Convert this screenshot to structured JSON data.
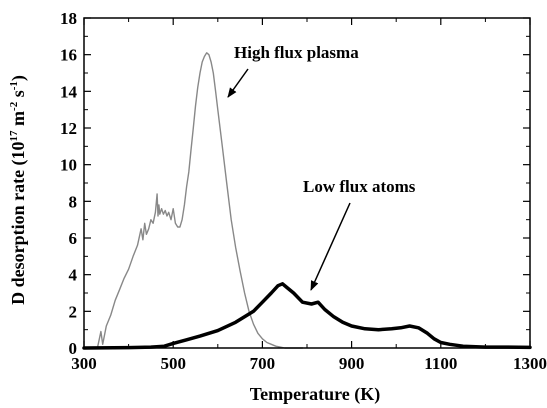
{
  "chart_data": {
    "type": "line",
    "title": "",
    "xlabel": "Temperature (K)",
    "ylabel": {
      "base": "D desorption rate (10",
      "exp1": "17",
      "mid1": " m",
      "exp2": "-2",
      "mid2": " s",
      "exp3": "-1",
      "end": ")"
    },
    "xlim": [
      300,
      1300
    ],
    "ylim": [
      0,
      18
    ],
    "xticks": [
      300,
      500,
      700,
      900,
      1100,
      1300
    ],
    "yticks": [
      0,
      2,
      4,
      6,
      8,
      10,
      12,
      14,
      16,
      18
    ],
    "grid": false,
    "series": [
      {
        "name": "High flux plasma",
        "color": "#888888",
        "x": [
          330,
          338,
          342,
          350,
          360,
          370,
          380,
          390,
          400,
          410,
          420,
          428,
          432,
          436,
          440,
          445,
          450,
          455,
          460,
          464,
          466,
          468,
          470,
          474,
          478,
          482,
          486,
          490,
          495,
          500,
          505,
          510,
          515,
          520,
          525,
          530,
          535,
          540,
          545,
          550,
          555,
          560,
          565,
          570,
          575,
          580,
          585,
          590,
          595,
          600,
          610,
          620,
          630,
          640,
          650,
          660,
          670,
          680,
          690,
          700,
          710,
          720,
          730,
          740,
          750,
          760,
          770,
          780,
          790
        ],
        "y": [
          0.0,
          0.9,
          0.2,
          1.2,
          1.8,
          2.6,
          3.2,
          3.8,
          4.3,
          5.0,
          5.6,
          6.5,
          5.9,
          6.8,
          6.2,
          6.5,
          7.0,
          6.8,
          7.4,
          8.4,
          7.2,
          7.8,
          7.3,
          7.6,
          7.3,
          7.5,
          7.2,
          7.4,
          7.0,
          7.6,
          6.8,
          6.6,
          6.6,
          7.0,
          7.8,
          8.8,
          9.6,
          10.8,
          12.0,
          13.2,
          14.2,
          15.0,
          15.6,
          15.9,
          16.1,
          16.0,
          15.6,
          15.0,
          14.0,
          13.0,
          11.0,
          9.0,
          7.0,
          5.5,
          4.2,
          3.0,
          2.0,
          1.3,
          0.8,
          0.5,
          0.3,
          0.2,
          0.1,
          0.05,
          0.0,
          0.0,
          0.0,
          0.0,
          0.0
        ]
      },
      {
        "name": "Low flux atoms",
        "color": "#000000",
        "x": [
          300,
          400,
          450,
          480,
          500,
          530,
          560,
          600,
          640,
          680,
          700,
          720,
          735,
          745,
          755,
          770,
          790,
          810,
          825,
          840,
          860,
          880,
          900,
          930,
          960,
          990,
          1010,
          1030,
          1050,
          1070,
          1085,
          1100,
          1120,
          1150,
          1200,
          1250,
          1300
        ],
        "y": [
          0.0,
          0.02,
          0.05,
          0.1,
          0.25,
          0.45,
          0.65,
          0.95,
          1.4,
          2.0,
          2.5,
          3.0,
          3.4,
          3.5,
          3.3,
          3.0,
          2.5,
          2.4,
          2.5,
          2.1,
          1.7,
          1.4,
          1.2,
          1.05,
          1.0,
          1.05,
          1.1,
          1.2,
          1.1,
          0.8,
          0.5,
          0.3,
          0.2,
          0.1,
          0.05,
          0.05,
          0.03
        ]
      }
    ],
    "annotations": [
      {
        "text": "High flux plasma",
        "arrow_to": [
          610,
          14.1
        ]
      },
      {
        "text": "Low flux atoms",
        "arrow_to": [
          820,
          3.1
        ]
      }
    ]
  }
}
